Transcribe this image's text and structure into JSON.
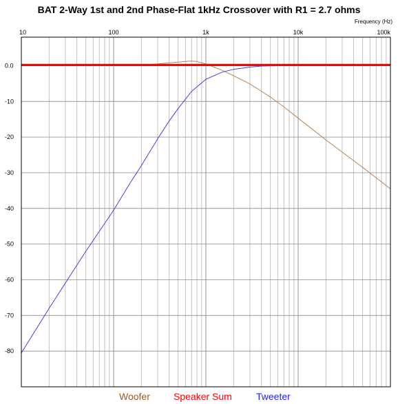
{
  "chart_data": {
    "type": "line",
    "title": "BAT 2-Way 1st and 2nd Phase-Flat 1kHz Crossover with R1 = 2.7 ohms",
    "x_axis_label": "Frequency   (Hz)",
    "x_scale": "log",
    "xlim": [
      10,
      100000
    ],
    "ylim": [
      -90,
      8
    ],
    "grid": true,
    "x_tick_labels": [
      "10",
      "100",
      "1k",
      "10k",
      "100k"
    ],
    "y_tick_labels": [
      "0.0",
      "-10",
      "-20",
      "-30",
      "-40",
      "-50",
      "-60",
      "-70",
      "-80"
    ],
    "legend_position": "bottom",
    "series": [
      {
        "name": "Woofer",
        "color": "#b8865a",
        "x": [
          200,
          300,
          400,
          500,
          600,
          700,
          800,
          1000,
          1200,
          1500,
          2000,
          3000,
          5000,
          7000,
          10000,
          20000,
          50000,
          100000
        ],
        "y": [
          0.2,
          0.5,
          0.8,
          1.0,
          1.2,
          1.3,
          1.2,
          0.5,
          -0.3,
          -1.3,
          -2.8,
          -5.1,
          -8.8,
          -11.5,
          -14.7,
          -20.8,
          -28.5,
          -34.5
        ]
      },
      {
        "name": "Speaker Sum",
        "color": "#ff0000",
        "x": [
          10,
          100000
        ],
        "y": [
          0.2,
          0.2
        ]
      },
      {
        "name": "Tweeter",
        "color": "#4040e0",
        "x": [
          10,
          20,
          50,
          100,
          150,
          200,
          300,
          400,
          500,
          700,
          1000,
          1500,
          2000,
          3000,
          4000,
          6000
        ],
        "y": [
          -80.5,
          -68,
          -52,
          -40.5,
          -33,
          -28,
          -20.5,
          -15.5,
          -12,
          -7.2,
          -3.8,
          -1.8,
          -1.0,
          -0.4,
          -0.1,
          0
        ]
      }
    ]
  }
}
